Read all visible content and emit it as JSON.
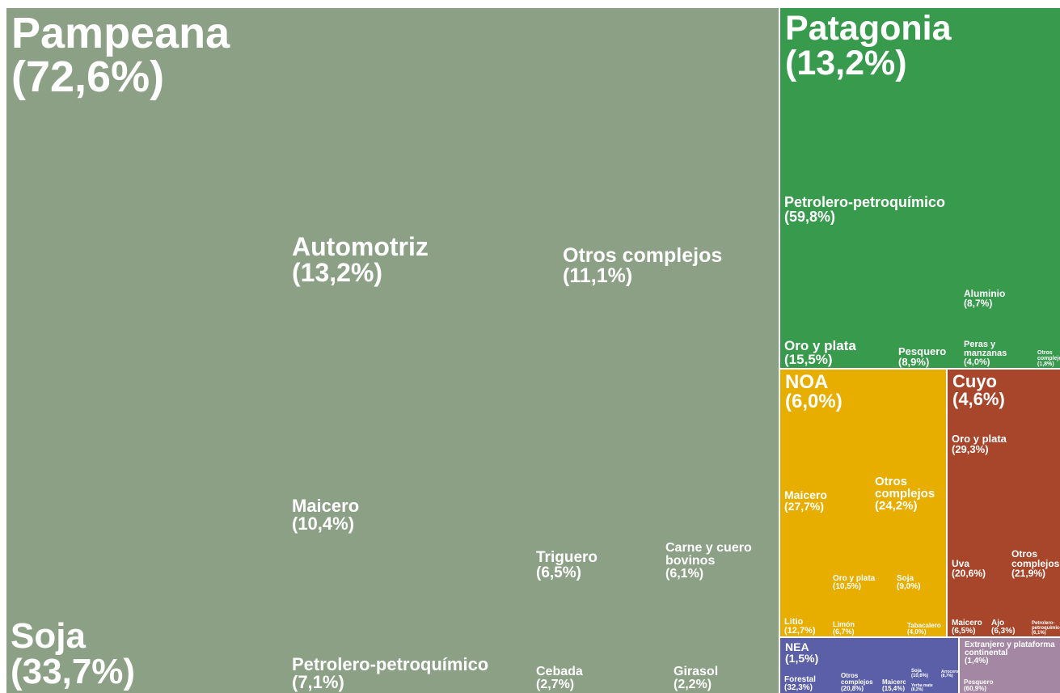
{
  "chart_data": {
    "type": "treemap",
    "regions": [
      {
        "name": "Pampeana",
        "value": 72.6,
        "value_label": "(72,6%)",
        "color": "#8ca086",
        "children": [
          {
            "name": "Soja",
            "value": 33.7,
            "value_label": "(33,7%)"
          },
          {
            "name": "Automotriz",
            "value": 13.2,
            "value_label": "(13,2%)"
          },
          {
            "name": "Otros complejos",
            "value": 11.1,
            "value_label": "(11,1%)"
          },
          {
            "name": "Maicero",
            "value": 10.4,
            "value_label": "(10,4%)"
          },
          {
            "name": "Petrolero-petroquímico",
            "value": 7.1,
            "value_label": "(7,1%)"
          },
          {
            "name": "Triguero",
            "value": 6.5,
            "value_label": "(6,5%)"
          },
          {
            "name": "Carne y cuero bovinos",
            "value": 6.1,
            "value_label": "(6,1%)"
          },
          {
            "name": "Cebada",
            "value": 2.7,
            "value_label": "(2,7%)"
          },
          {
            "name": "Girasol",
            "value": 2.2,
            "value_label": "(2,2%)"
          }
        ]
      },
      {
        "name": "Patagonia",
        "value": 13.2,
        "value_label": "(13,2%)",
        "color": "#389a4d",
        "children": [
          {
            "name": "Petrolero-petroquímico",
            "value": 59.8,
            "value_label": "(59,8%)"
          },
          {
            "name": "Oro y plata",
            "value": 15.5,
            "value_label": "(15,5%)"
          },
          {
            "name": "Pesquero",
            "value": 8.9,
            "value_label": "(8,9%)"
          },
          {
            "name": "Aluminio",
            "value": 8.7,
            "value_label": "(8,7%)"
          },
          {
            "name": "Peras y manzanas",
            "value": 4.0,
            "value_label": "(4,0%)"
          },
          {
            "name": "Otros complejos",
            "value": 1.8,
            "value_label": "(1,8%)"
          }
        ]
      },
      {
        "name": "NOA",
        "value": 6.0,
        "value_label": "(6,0%)",
        "color": "#e7ae00",
        "children": [
          {
            "name": "Maicero",
            "value": 27.7,
            "value_label": "(27,7%)"
          },
          {
            "name": "Otros complejos",
            "value": 24.2,
            "value_label": "(24,2%)"
          },
          {
            "name": "Litio",
            "value": 12.7,
            "value_label": "(12,7%)"
          },
          {
            "name": "Oro y plata",
            "value": 10.5,
            "value_label": "(10,5%)"
          },
          {
            "name": "Soja",
            "value": 9.0,
            "value_label": "(9,0%)"
          },
          {
            "name": "Limón",
            "value": 6.7,
            "value_label": "(6,7%)"
          },
          {
            "name": "Tabacalero",
            "value": 4.0,
            "value_label": "(4,0%)"
          }
        ]
      },
      {
        "name": "Cuyo",
        "value": 4.6,
        "value_label": "(4,6%)",
        "color": "#a8462c",
        "children": [
          {
            "name": "Oro y plata",
            "value": 29.3,
            "value_label": "(29,3%)"
          },
          {
            "name": "Uva",
            "value": 20.6,
            "value_label": "(20,6%)"
          },
          {
            "name": "Otros complejos",
            "value": 21.9,
            "value_label": "(21,9%)"
          },
          {
            "name": "Maicero",
            "value": 6.5,
            "value_label": "(6,5%)"
          },
          {
            "name": "Ajo",
            "value": 6.3,
            "value_label": "(6,3%)"
          },
          {
            "name": "Petrolero-petroquímico",
            "value": 6.1,
            "value_label": "(6,1%)"
          }
        ]
      },
      {
        "name": "NEA",
        "value": 1.5,
        "value_label": "(1,5%)",
        "color": "#5a5fa8",
        "children": [
          {
            "name": "Forestal",
            "value": 32.3,
            "value_label": "(32,3%)"
          },
          {
            "name": "Otros complejos",
            "value": 20.8,
            "value_label": "(20,8%)"
          },
          {
            "name": "Maicero",
            "value": 15.4,
            "value_label": "(15,4%)"
          },
          {
            "name": "Soja",
            "value": 10.6,
            "value_label": "(10,6%)"
          },
          {
            "name": "Arrocero",
            "value": 8.7,
            "value_label": "(8,7%)"
          },
          {
            "name": "Yerba mate",
            "value": 8.2,
            "value_label": "(8,2%)"
          }
        ]
      },
      {
        "name": "Extranjero y plataforma continental",
        "value": 1.4,
        "value_label": "(1,4%)",
        "color": "#a487a2",
        "children": [
          {
            "name": "Pesquero",
            "value": 60.9,
            "value_label": "(60,9%)"
          }
        ]
      }
    ]
  }
}
